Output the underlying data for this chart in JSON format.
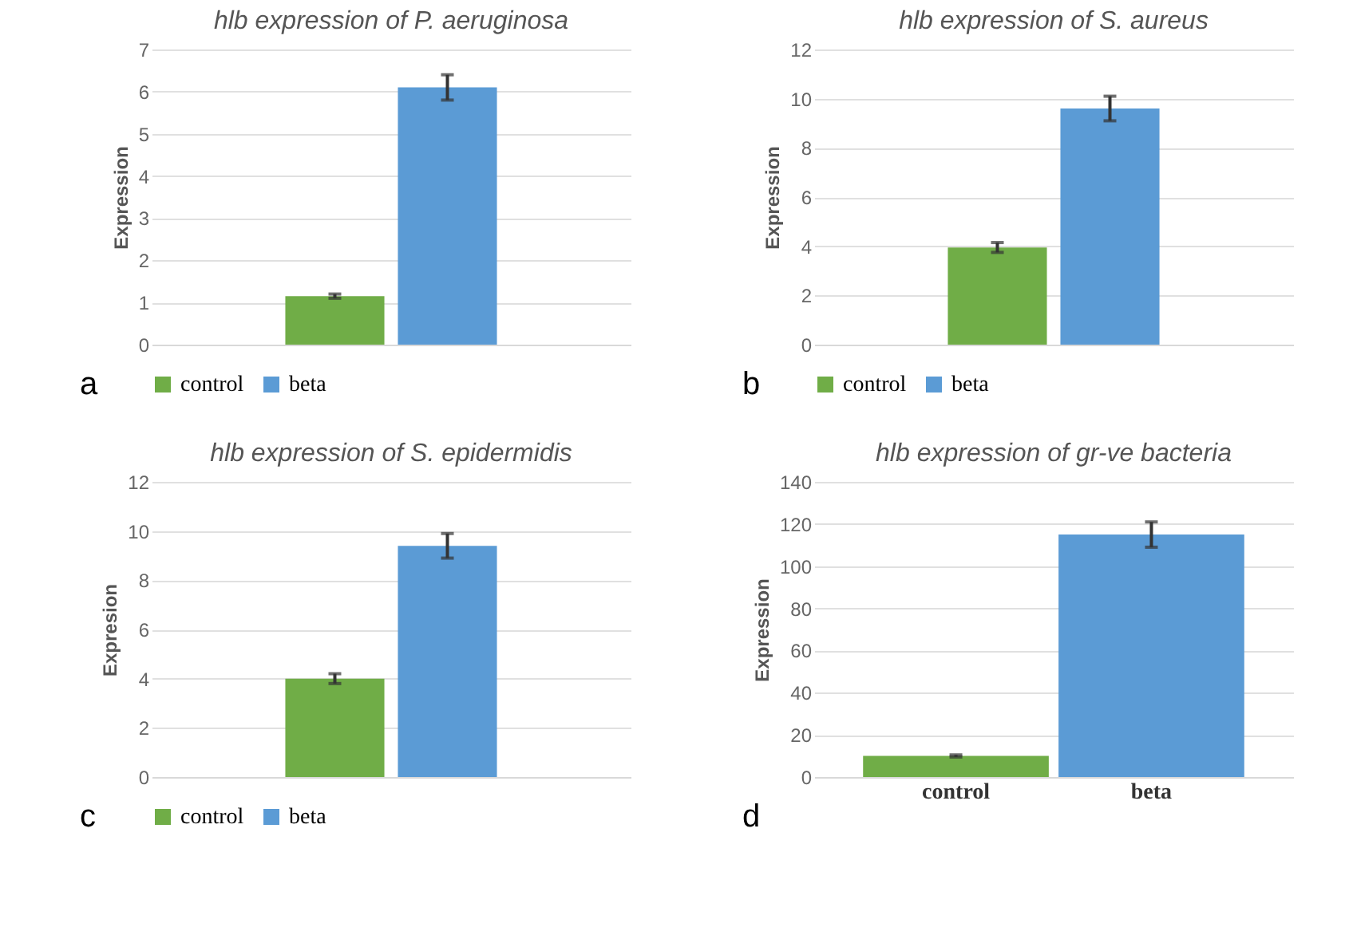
{
  "chart_data": [
    {
      "type": "bar",
      "title": "hlb expression of P. aeruginosa",
      "ylabel": "Expression",
      "categories": [
        null
      ],
      "series": [
        {
          "name": "control",
          "color": "#70ad47",
          "values": [
            1.15
          ],
          "errors": [
            0.05
          ]
        },
        {
          "name": "beta",
          "color": "#5b9bd5",
          "values": [
            6.1
          ],
          "errors": [
            0.3
          ]
        }
      ],
      "ylim": [
        0,
        7
      ],
      "yticks": [
        0,
        1,
        2,
        3,
        4,
        5,
        6,
        7
      ],
      "grid": "y",
      "legend": "bottom",
      "annotations": [
        "a"
      ]
    },
    {
      "type": "bar",
      "title": "hlb expression of S. aureus",
      "ylabel": "Expression",
      "categories": [
        null
      ],
      "series": [
        {
          "name": "control",
          "color": "#70ad47",
          "values": [
            3.95
          ],
          "errors": [
            0.2
          ]
        },
        {
          "name": "beta",
          "color": "#5b9bd5",
          "values": [
            9.6
          ],
          "errors": [
            0.5
          ]
        }
      ],
      "ylim": [
        0,
        12
      ],
      "yticks": [
        0,
        2,
        4,
        6,
        8,
        10,
        12
      ],
      "grid": "y",
      "legend": "bottom",
      "annotations": [
        "b"
      ]
    },
    {
      "type": "bar",
      "title": "hlb expression of S. epidermidis",
      "ylabel": "Expresion",
      "categories": [
        null
      ],
      "series": [
        {
          "name": "control",
          "color": "#70ad47",
          "values": [
            4.0
          ],
          "errors": [
            0.2
          ]
        },
        {
          "name": "beta",
          "color": "#5b9bd5",
          "values": [
            9.4
          ],
          "errors": [
            0.5
          ]
        }
      ],
      "ylim": [
        0,
        12
      ],
      "yticks": [
        0,
        2,
        4,
        6,
        8,
        10,
        12
      ],
      "grid": "y",
      "legend": "bottom",
      "annotations": [
        "c"
      ]
    },
    {
      "type": "bar",
      "title": "hlb expression of gr-ve bacteria",
      "ylabel": "Expression",
      "categories": [
        "control",
        "beta"
      ],
      "values": [
        10,
        115
      ],
      "errors": [
        0.5,
        6
      ],
      "colors": [
        "#70ad47",
        "#5b9bd5"
      ],
      "ylim": [
        0,
        140
      ],
      "yticks": [
        0,
        20,
        40,
        60,
        80,
        100,
        120,
        140
      ],
      "grid": "y",
      "annotations": [
        "d"
      ]
    }
  ]
}
